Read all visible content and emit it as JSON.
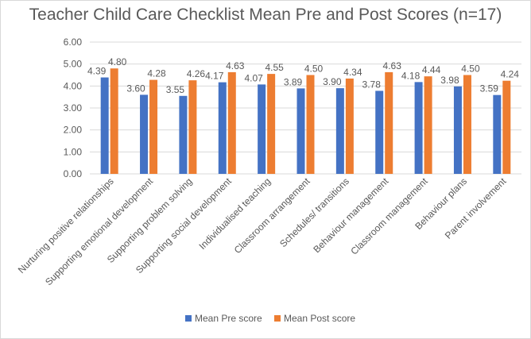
{
  "chart_data": {
    "type": "bar",
    "title": "Teacher Child Care Checklist Mean Pre and Post Scores (n=17)",
    "categories": [
      "Nurturing positive relationships",
      "Supporting emotional development",
      "Supporting problem solving",
      "Supporting social development",
      "Individualised teaching",
      "Classroom arrangement",
      "Schedules/ transitions",
      "Behaviour management",
      "Classroom management",
      "Behaviour plans",
      "Parent involvement"
    ],
    "series": [
      {
        "name": "Mean Pre score",
        "color": "#4472c4",
        "values": [
          4.39,
          3.6,
          3.55,
          4.17,
          4.07,
          3.89,
          3.9,
          3.78,
          4.18,
          3.98,
          3.59
        ],
        "labels": [
          "4.39",
          "3.60",
          "3.55",
          "4.17",
          "4.07",
          "3.89",
          "3.90",
          "3.78",
          "4.18",
          "3.98",
          "3.59"
        ]
      },
      {
        "name": "Mean Post score",
        "color": "#ed7d31",
        "values": [
          4.8,
          4.28,
          4.26,
          4.63,
          4.55,
          4.5,
          4.34,
          4.63,
          4.44,
          4.5,
          4.24
        ],
        "labels": [
          "4.80",
          "4.28",
          "4.26",
          "4.63",
          "4.55",
          "4.50",
          "4.34",
          "4.63",
          "4.44",
          "4.50",
          "4.24"
        ]
      }
    ],
    "ylim": [
      0,
      6
    ],
    "yticks": [
      "0.00",
      "1.00",
      "2.00",
      "3.00",
      "4.00",
      "5.00",
      "6.00"
    ],
    "xlabel": "",
    "ylabel": "",
    "grid": true,
    "gridline_color": "#d9d9d9",
    "legend_position": "bottom"
  }
}
